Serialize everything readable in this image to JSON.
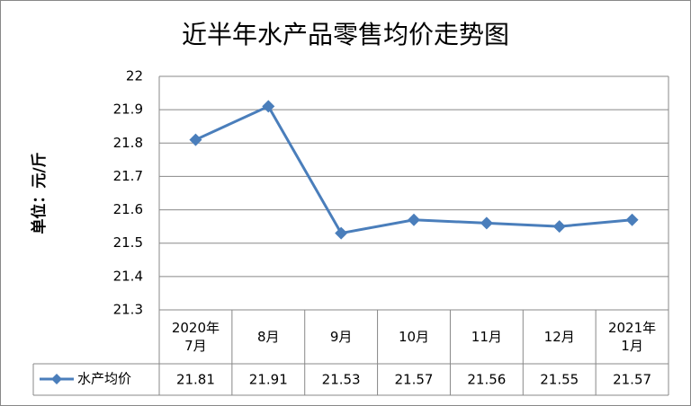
{
  "chart_data": {
    "type": "line",
    "title": "近半年水产品零售均价走势图",
    "y_label": "单位：元/斤",
    "categories": [
      "2020年\n7月",
      "8月",
      "9月",
      "10月",
      "11月",
      "12月",
      "2021年\n1月"
    ],
    "series": [
      {
        "name": "水产均价",
        "color": "#4a7ebb",
        "values": [
          21.81,
          21.91,
          21.53,
          21.57,
          21.56,
          21.55,
          21.57
        ]
      }
    ],
    "ylim": [
      21.3,
      22
    ],
    "yticks": [
      21.3,
      21.4,
      21.5,
      21.6,
      21.7,
      21.8,
      21.9,
      22
    ],
    "grid": true
  }
}
